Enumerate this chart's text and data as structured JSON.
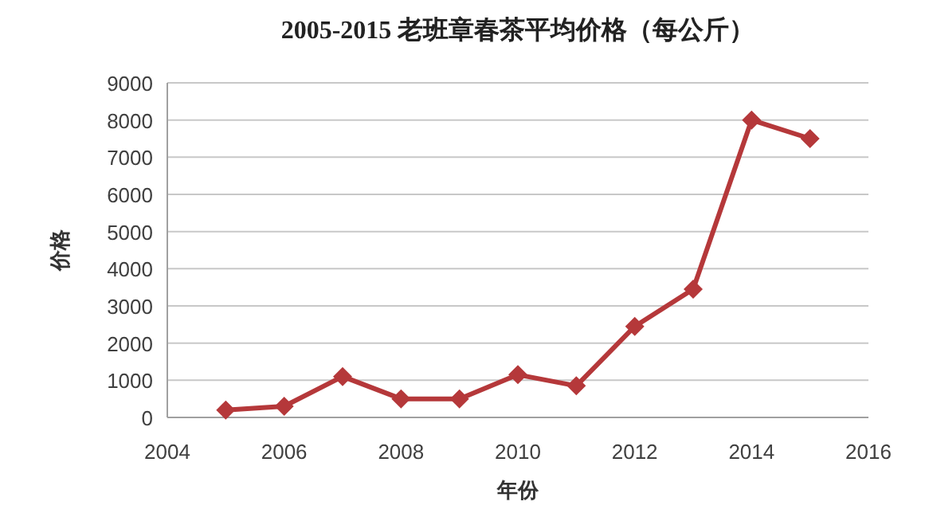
{
  "chart_data": {
    "type": "line",
    "title": "2005-2015 老班章春茶平均价格（每公斤）",
    "xlabel": "年份",
    "ylabel": "价格",
    "x": [
      2005,
      2006,
      2007,
      2008,
      2009,
      2010,
      2011,
      2012,
      2013,
      2014,
      2015
    ],
    "series": [
      {
        "color": "#b5383a",
        "values": [
          200,
          300,
          1100,
          500,
          500,
          1150,
          850,
          2450,
          3450,
          8000,
          7500
        ]
      }
    ],
    "xlim": [
      2004,
      2016
    ],
    "xticks": [
      2004,
      2006,
      2008,
      2010,
      2012,
      2014,
      2016
    ],
    "ylim": [
      0,
      9000
    ],
    "yticks": [
      0,
      1000,
      2000,
      3000,
      4000,
      5000,
      6000,
      7000,
      8000,
      9000
    ],
    "grid": "y",
    "marker": "diamond",
    "line_style": "solid"
  }
}
